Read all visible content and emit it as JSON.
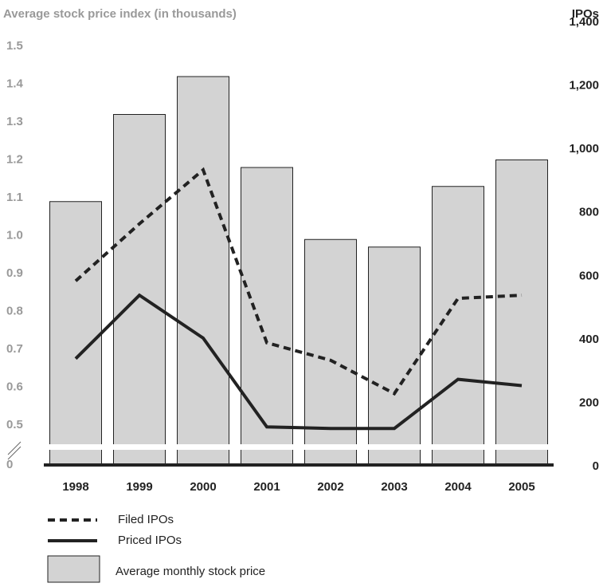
{
  "chart_data": {
    "type": "bar",
    "title": "Average stock price index (in thousands)",
    "y2_title": "IPOs",
    "categories": [
      "1998",
      "1999",
      "2000",
      "2001",
      "2002",
      "2003",
      "2004",
      "2005"
    ],
    "ylim": [
      0.5,
      1.5
    ],
    "axis_break": true,
    "yticks": [
      0,
      0.5,
      0.6,
      0.7,
      0.8,
      0.9,
      {
        "value": 1,
        "label": "1.0"
      },
      1.1,
      1.2,
      1.3,
      1.4,
      1.5
    ],
    "y2lim": [
      0,
      1400
    ],
    "y2ticks": [
      0,
      200,
      400,
      600,
      800,
      {
        "value": 1000,
        "label": "1,000"
      },
      {
        "value": 1200,
        "label": "1,200"
      },
      {
        "value": 1400,
        "label": "1,400"
      }
    ],
    "series": [
      {
        "name": "Filed IPOs",
        "type": "line",
        "dash": true,
        "color": "#222222",
        "axis": "y2",
        "values": [
          580,
          760,
          930,
          385,
          330,
          225,
          525,
          535
        ]
      },
      {
        "name": "Priced IPOs",
        "type": "line",
        "dash": false,
        "color": "#222222",
        "axis": "y2",
        "values": [
          335,
          535,
          400,
          120,
          115,
          115,
          270,
          250
        ]
      },
      {
        "name": "Average monthly stock price",
        "type": "bar",
        "color": "#d3d3d3",
        "values": [
          1.09,
          1.32,
          1.42,
          1.18,
          0.99,
          0.97,
          1.13,
          1.2
        ]
      }
    ]
  }
}
